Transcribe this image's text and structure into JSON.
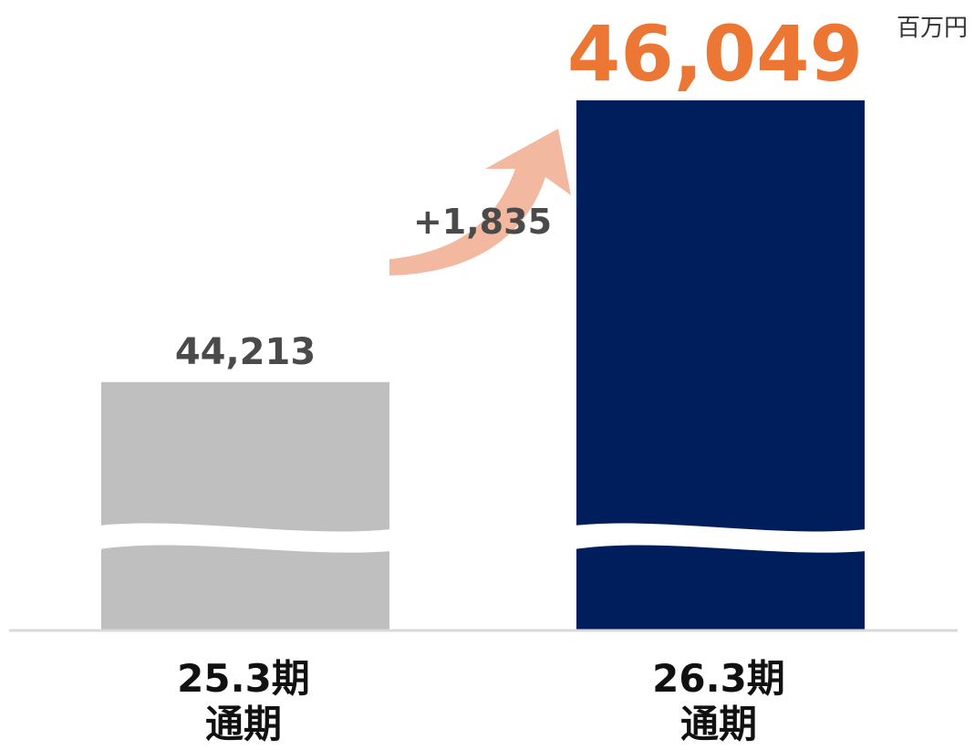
{
  "unit": "百万円",
  "colors": {
    "previous_bar": "#bfbfbf",
    "current_bar": "#001e5c",
    "previous_value_text": "#4a4a4a",
    "current_value_text": "#ec7633",
    "arrow": "#f2b9a0",
    "diff_text": "#4a4a4a",
    "axis": "#d9d9d9",
    "category_text": "#111111"
  },
  "chart_data": {
    "type": "bar",
    "axis_break": true,
    "categories": [
      [
        "25.3期",
        "通期"
      ],
      [
        "26.3期",
        "通期"
      ]
    ],
    "values": [
      44213,
      46049
    ],
    "value_labels": [
      "44,213",
      "46,049"
    ],
    "difference": 1835,
    "difference_label": "+1,835",
    "unit": "百万円"
  }
}
